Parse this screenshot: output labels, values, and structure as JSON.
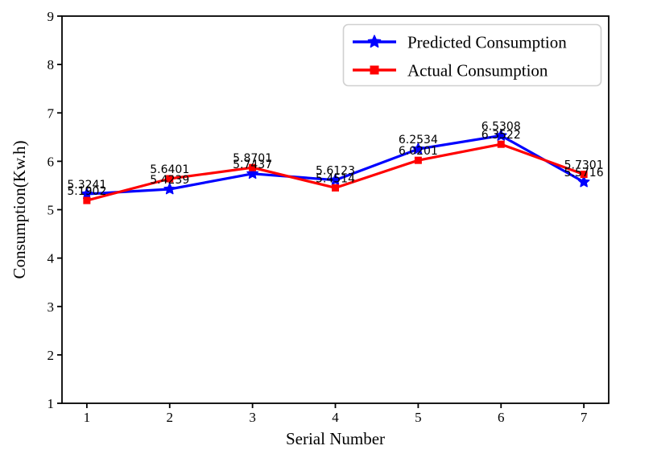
{
  "chart_data": {
    "type": "line",
    "title": "",
    "xlabel": "Serial Number",
    "ylabel": "Consumption(Kw.h)",
    "x": [
      1,
      2,
      3,
      4,
      5,
      6,
      7
    ],
    "x_ticks": [
      1,
      2,
      3,
      4,
      5,
      6,
      7
    ],
    "y_ticks": [
      1,
      2,
      3,
      4,
      5,
      6,
      7,
      8,
      9
    ],
    "xlim": [
      0.7,
      7.3
    ],
    "ylim": [
      1,
      9
    ],
    "grid": false,
    "legend_position": "upper right",
    "data_labels": true,
    "series": [
      {
        "name": "Predicted Consumption",
        "color": "#0000ff",
        "marker": "star",
        "values": [
          5.3241,
          5.4239,
          5.7437,
          5.6123,
          6.2534,
          6.5308,
          5.5716
        ]
      },
      {
        "name": "Actual Consumption",
        "color": "#ff0000",
        "marker": "square",
        "values": [
          5.1902,
          5.6401,
          5.8701,
          5.4514,
          6.0201,
          6.3522,
          5.7301
        ]
      }
    ]
  },
  "style": {
    "axis_color": "#000000",
    "label_color": "#000000",
    "legend_border_color": "#d0d0d0",
    "background": "#ffffff"
  }
}
